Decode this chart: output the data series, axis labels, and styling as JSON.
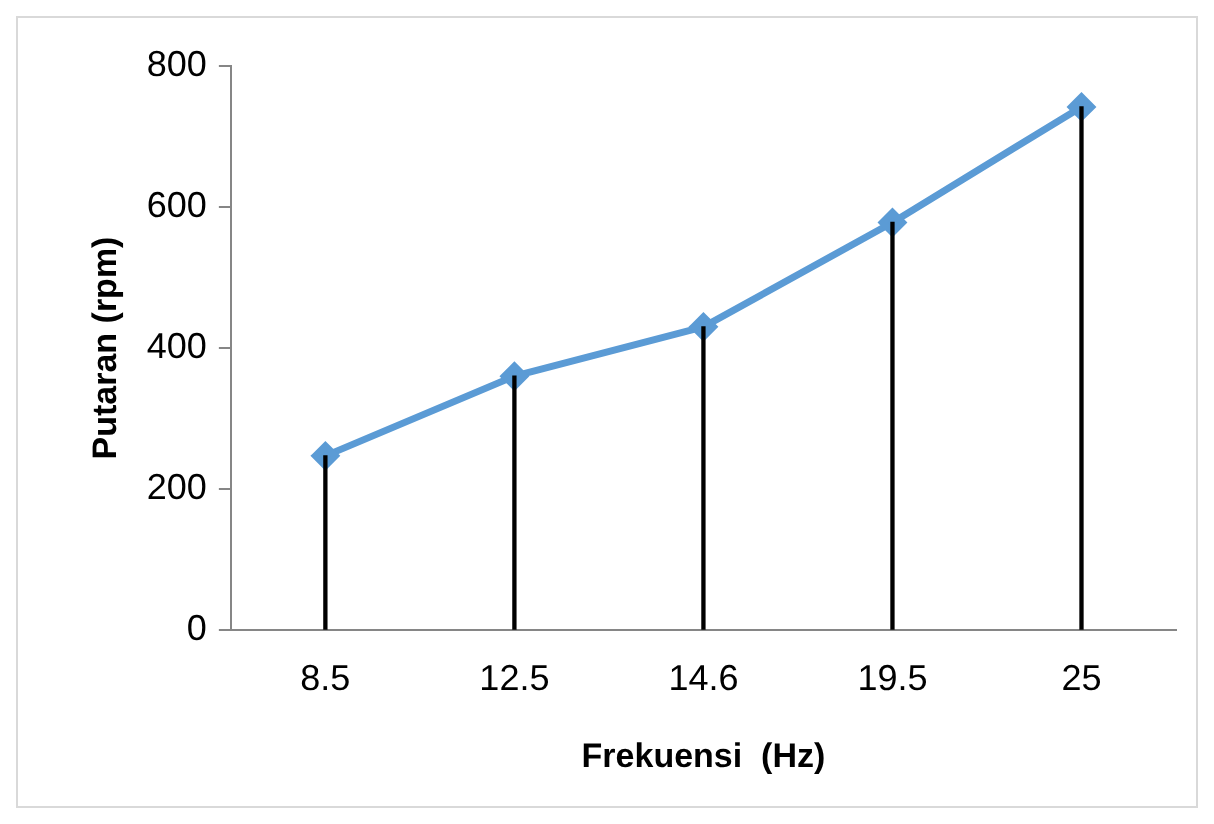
{
  "chart_data": {
    "type": "line",
    "xlabel": "Frekuensi  (Hz)",
    "ylabel": "Putaran (rpm)",
    "categories": [
      "8.5",
      "12.5",
      "14.6",
      "19.5",
      "25"
    ],
    "series": [
      {
        "type": "bar",
        "color": "#000000",
        "values": [
          247,
          360,
          430,
          578,
          742
        ]
      },
      {
        "color": "#5b9bd5",
        "values": [
          247,
          360,
          430,
          578,
          742
        ]
      }
    ],
    "ylim": [
      0,
      800
    ],
    "yticks": [
      0,
      200,
      400,
      600,
      800
    ],
    "grid": false,
    "legend": false,
    "marker": "diamond",
    "line_style": "solid"
  }
}
